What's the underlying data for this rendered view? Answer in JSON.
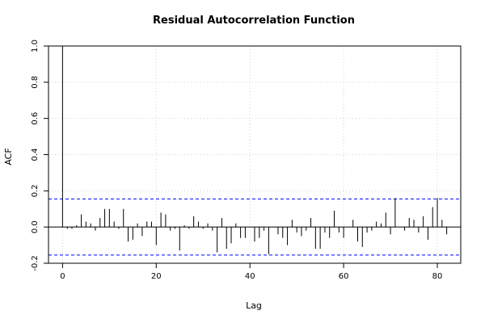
{
  "chart_data": {
    "type": "bar",
    "title": "Residual Autocorrelation Function",
    "xlabel": "Lag",
    "ylabel": "ACF",
    "xlim": [
      -3,
      85
    ],
    "ylim": [
      -0.2,
      1.0
    ],
    "x_ticks": [
      0,
      20,
      40,
      60,
      80
    ],
    "y_ticks": [
      -0.2,
      0.0,
      0.2,
      0.4,
      0.6,
      0.8,
      1.0
    ],
    "grid": true,
    "confidence_limit": 0.155,
    "x": [
      0,
      1,
      2,
      3,
      4,
      5,
      6,
      7,
      8,
      9,
      10,
      11,
      12,
      13,
      14,
      15,
      16,
      17,
      18,
      19,
      20,
      21,
      22,
      23,
      24,
      25,
      26,
      27,
      28,
      29,
      30,
      31,
      32,
      33,
      34,
      35,
      36,
      37,
      38,
      39,
      40,
      41,
      42,
      43,
      44,
      45,
      46,
      47,
      48,
      49,
      50,
      51,
      52,
      53,
      54,
      55,
      56,
      57,
      58,
      59,
      60,
      61,
      62,
      63,
      64,
      65,
      66,
      67,
      68,
      69,
      70,
      71,
      72,
      73,
      74,
      75,
      76,
      77,
      78,
      79,
      80,
      81,
      82
    ],
    "values": [
      1.0,
      -0.01,
      -0.01,
      0.01,
      0.07,
      0.03,
      0.02,
      -0.02,
      0.05,
      0.1,
      0.1,
      0.03,
      -0.01,
      0.1,
      -0.08,
      -0.07,
      0.02,
      -0.05,
      0.03,
      0.03,
      -0.1,
      0.08,
      0.07,
      -0.02,
      -0.01,
      -0.13,
      0.01,
      -0.01,
      0.06,
      0.03,
      -0.01,
      0.02,
      -0.02,
      -0.14,
      0.05,
      -0.12,
      -0.09,
      0.02,
      -0.06,
      -0.06,
      0.0,
      -0.08,
      -0.06,
      -0.02,
      -0.15,
      0.0,
      -0.04,
      -0.06,
      -0.1,
      0.04,
      -0.03,
      -0.05,
      -0.02,
      0.05,
      -0.12,
      -0.12,
      -0.03,
      -0.06,
      0.09,
      -0.03,
      -0.06,
      0.0,
      0.04,
      -0.08,
      -0.11,
      -0.03,
      -0.02,
      0.03,
      0.02,
      0.08,
      -0.04,
      0.16,
      0.0,
      -0.02,
      0.05,
      0.04,
      -0.03,
      0.06,
      -0.07,
      0.11,
      0.16,
      0.04,
      -0.04
    ]
  }
}
